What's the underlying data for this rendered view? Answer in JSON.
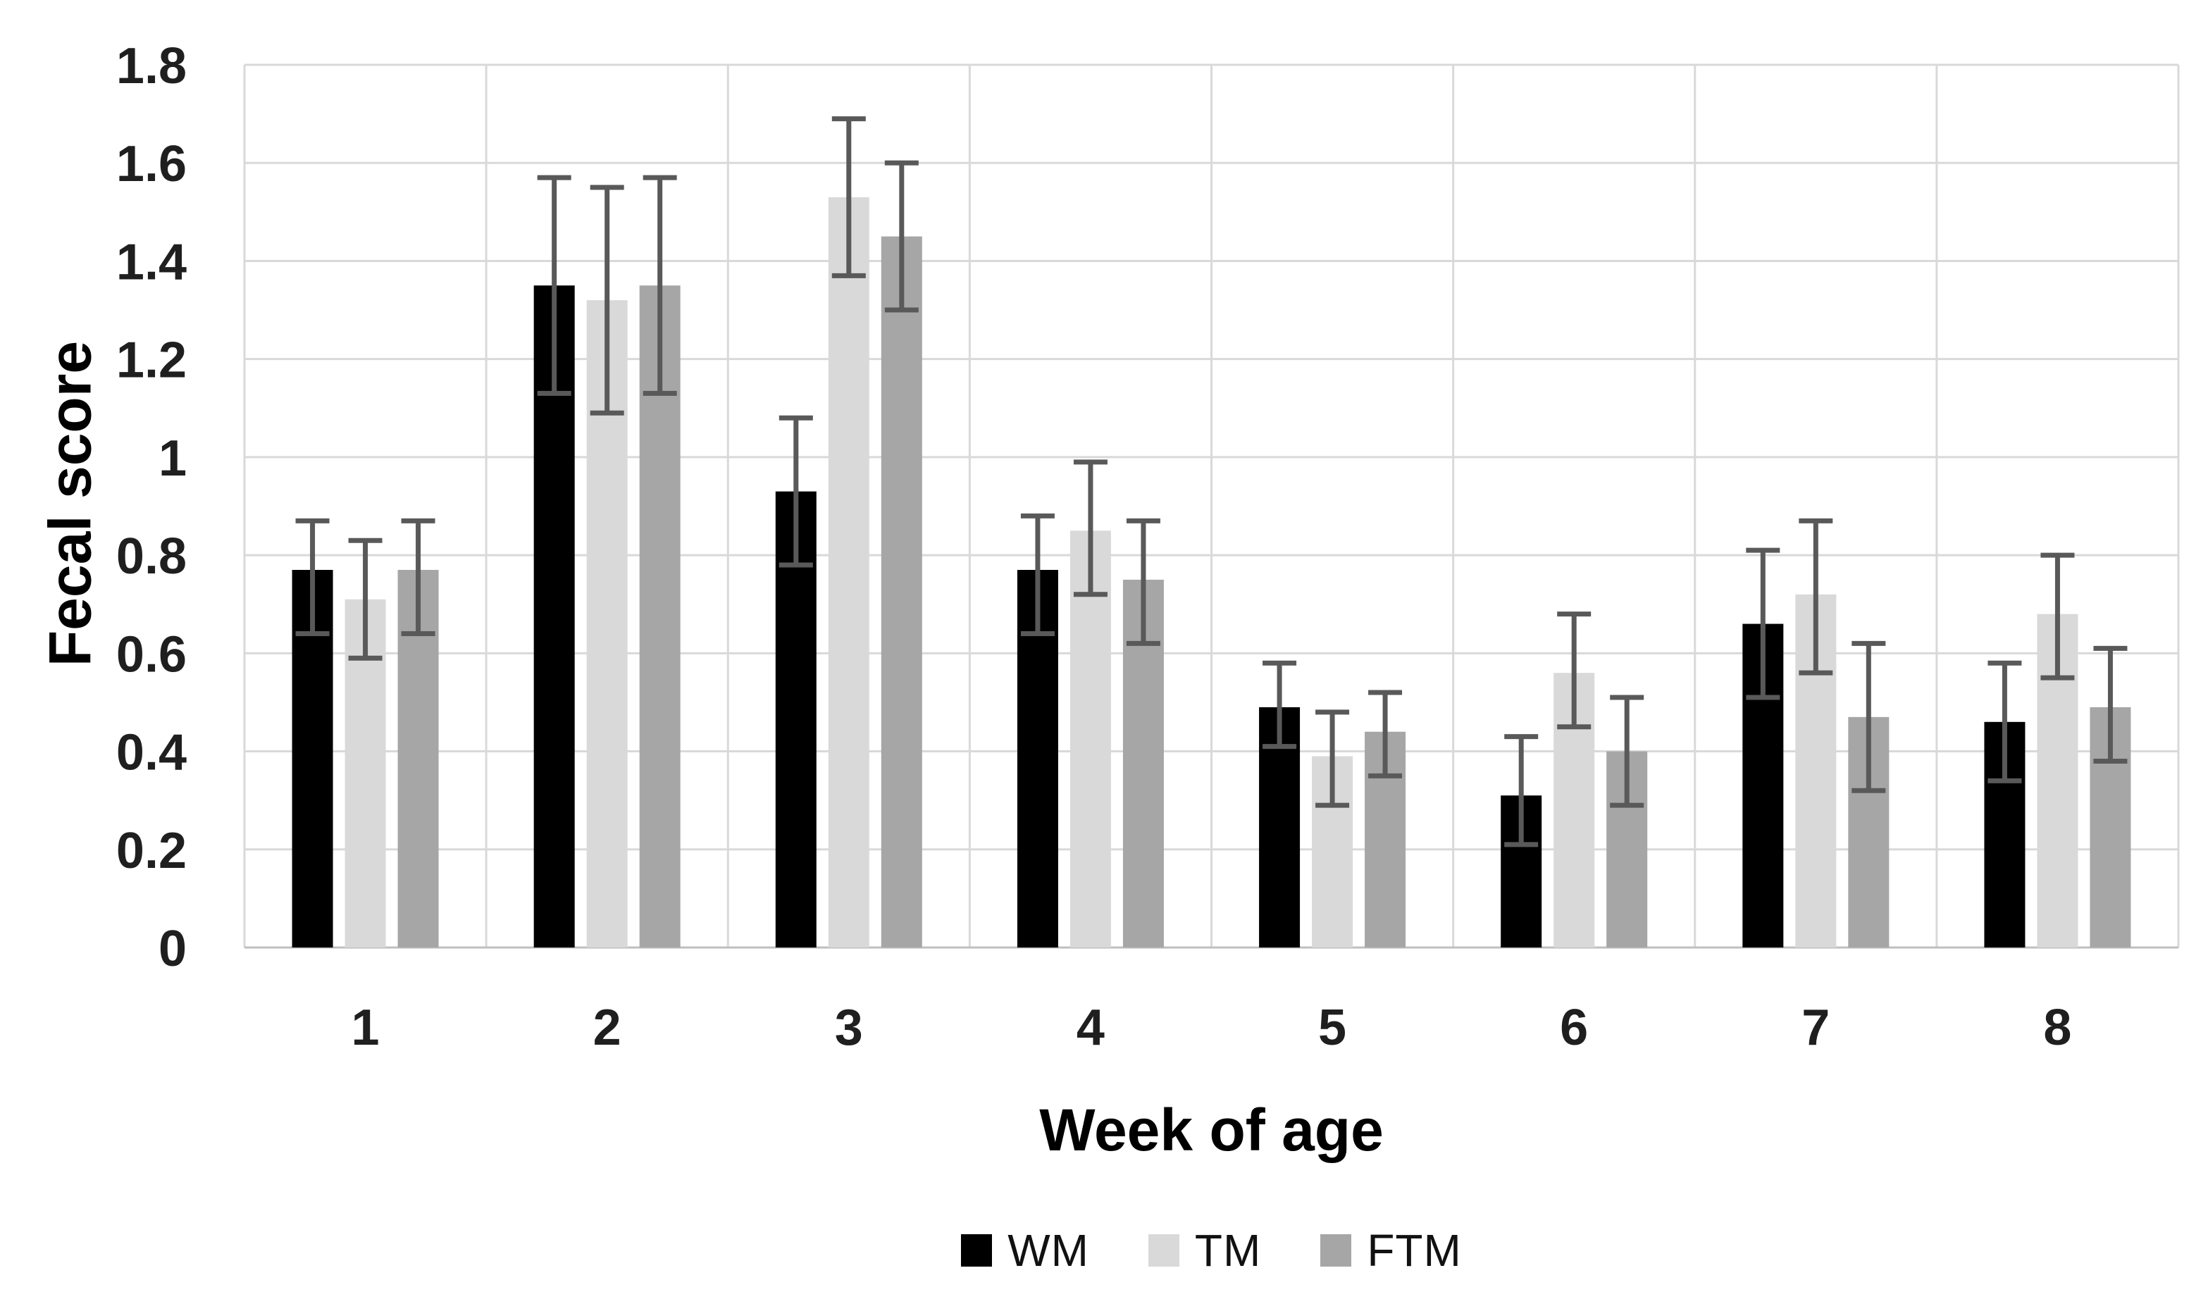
{
  "chart_data": {
    "type": "bar",
    "title": "",
    "xlabel": "Week of age",
    "ylabel": "Fecal score",
    "categories": [
      "1",
      "2",
      "3",
      "4",
      "5",
      "6",
      "7",
      "8"
    ],
    "series": [
      {
        "name": "WM",
        "color": "#000000",
        "values": [
          0.77,
          1.35,
          0.93,
          0.77,
          0.49,
          0.31,
          0.66,
          0.46
        ],
        "error_low": [
          0.64,
          1.13,
          0.78,
          0.64,
          0.41,
          0.21,
          0.51,
          0.34
        ],
        "error_high": [
          0.87,
          1.57,
          1.08,
          0.88,
          0.58,
          0.43,
          0.81,
          0.58
        ]
      },
      {
        "name": "TM",
        "color": "#d9d9d9",
        "values": [
          0.71,
          1.32,
          1.53,
          0.85,
          0.39,
          0.56,
          0.72,
          0.68
        ],
        "error_low": [
          0.59,
          1.09,
          1.37,
          0.72,
          0.29,
          0.45,
          0.56,
          0.55
        ],
        "error_high": [
          0.83,
          1.55,
          1.69,
          0.99,
          0.48,
          0.68,
          0.87,
          0.8
        ]
      },
      {
        "name": "FTM",
        "color": "#a6a6a6",
        "values": [
          0.77,
          1.35,
          1.45,
          0.75,
          0.44,
          0.4,
          0.47,
          0.49
        ],
        "error_low": [
          0.64,
          1.13,
          1.3,
          0.62,
          0.35,
          0.29,
          0.32,
          0.38
        ],
        "error_high": [
          0.87,
          1.57,
          1.6,
          0.87,
          0.52,
          0.51,
          0.62,
          0.61
        ]
      }
    ],
    "ylim": [
      0,
      1.8
    ],
    "yticks": [
      0,
      0.2,
      0.4,
      0.6,
      0.8,
      1,
      1.2,
      1.4,
      1.6,
      1.8
    ],
    "ytick_labels": [
      "0",
      "0.2",
      "0.4",
      "0.6",
      "0.8",
      "1",
      "1.2",
      "1.4",
      "1.6",
      "1.8"
    ],
    "grid": true,
    "legend_position": "bottom",
    "gridline_color": "#d9d9d9",
    "axis_line_color": "#bfbfbf",
    "error_bar_color": "#595959"
  }
}
